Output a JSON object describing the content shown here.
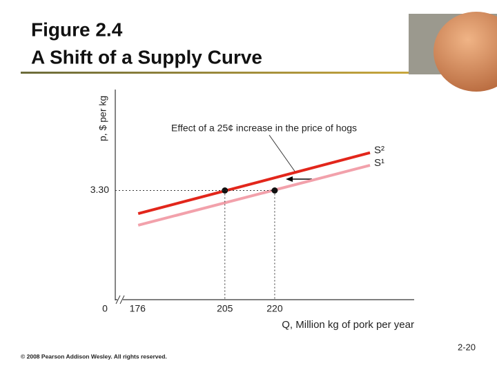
{
  "header": {
    "figure": "Figure 2.4",
    "title": "A Shift of a Supply Curve"
  },
  "chart_data": {
    "type": "line",
    "annotation": "Effect of a 25¢ increase in the price of hogs",
    "x_label": "Q, Million kg of pork per year",
    "y_label": "p, $ per kg",
    "x_origin": 0,
    "xlim": [
      172,
      262
    ],
    "ylim": [
      0,
      6.35
    ],
    "xticks": [
      176,
      205,
      220
    ],
    "yticks": [
      {
        "value": 3.3,
        "label": "3.30"
      }
    ],
    "series": [
      {
        "name": "S²",
        "color": "#e2261b",
        "x": [
          178.9,
          248.7
        ],
        "values": [
          2.6,
          4.44
        ]
      },
      {
        "name": "S¹",
        "color": "#f2a1ab",
        "x": [
          178.9,
          248.7
        ],
        "values": [
          2.25,
          4.06
        ]
      }
    ],
    "points": {
      "x": [
        205,
        220
      ],
      "values": [
        3.3,
        3.3
      ]
    }
  },
  "footer": {
    "copyright": "© 2008 Pearson Addison Wesley. All rights reserved.",
    "page": "2-20"
  }
}
